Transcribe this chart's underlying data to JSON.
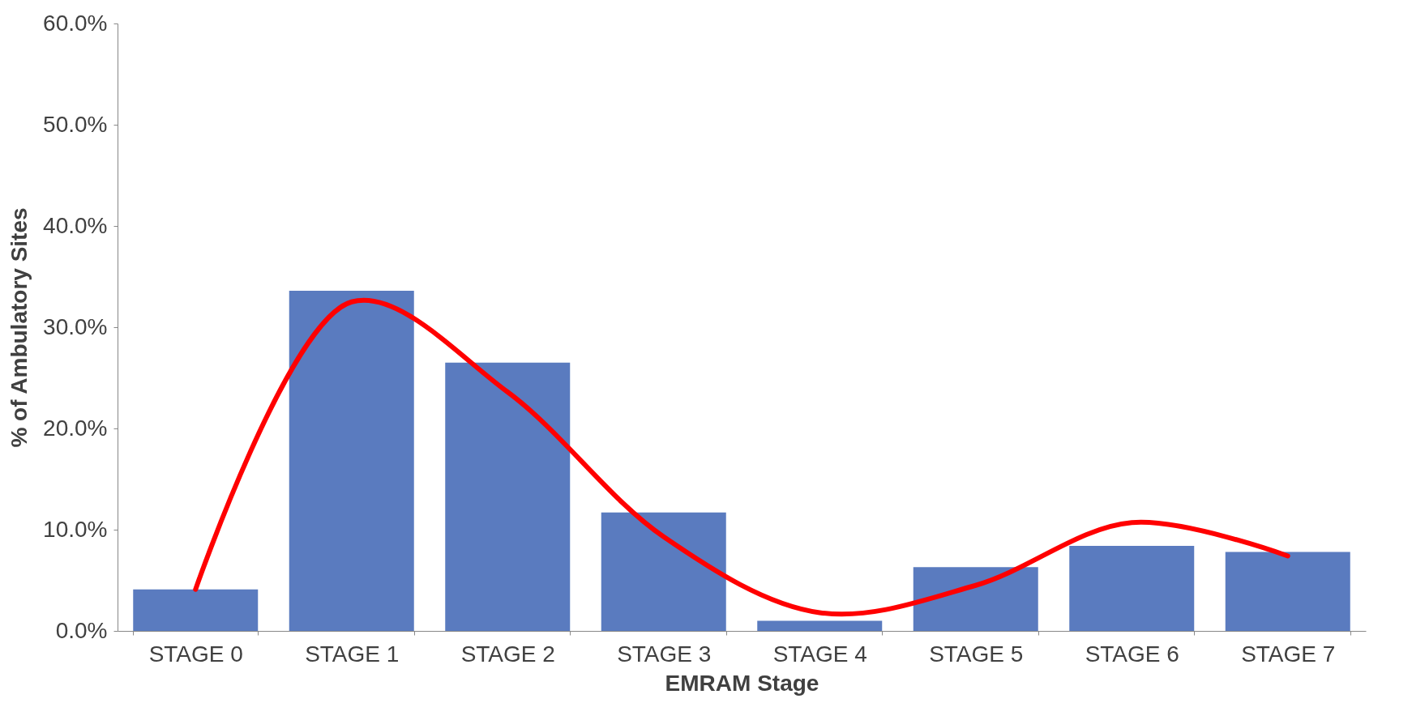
{
  "chart_data": {
    "type": "bar",
    "xlabel": "EMRAM Stage",
    "ylabel": "% of Ambulatory Sites",
    "categories": [
      "STAGE 0",
      "STAGE 1",
      "STAGE 2",
      "STAGE 3",
      "STAGE 4",
      "STAGE 5",
      "STAGE 6",
      "STAGE 7"
    ],
    "series": [
      {
        "color": "#5a7bbf",
        "values": [
          4.1,
          33.6,
          26.5,
          11.7,
          1.0,
          6.3,
          8.4,
          7.8
        ]
      },
      {
        "type": "line",
        "color": "#ff0000",
        "values": [
          4.1,
          32.5,
          23.6,
          9.3,
          1.8,
          4.5,
          10.7,
          7.4
        ]
      }
    ],
    "ylim": [
      0,
      60
    ],
    "yticks": [
      {
        "value": 0,
        "label": "0.0%"
      },
      {
        "value": 10,
        "label": "10.0%"
      },
      {
        "value": 20,
        "label": "20.0%"
      },
      {
        "value": 30,
        "label": "30.0%"
      },
      {
        "value": 40,
        "label": "40.0%"
      },
      {
        "value": 50,
        "label": "50.0%"
      },
      {
        "value": 60,
        "label": "60.0%"
      }
    ],
    "grid": false,
    "line_style": "solid",
    "marker": "none"
  }
}
